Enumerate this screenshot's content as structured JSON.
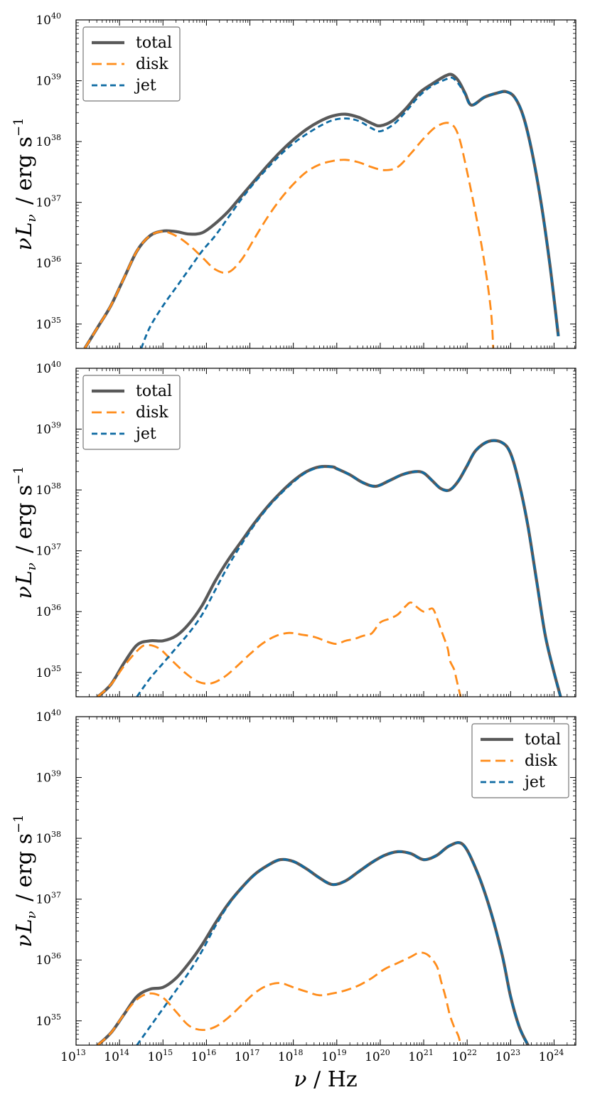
{
  "colors": {
    "total": "#595959",
    "disk": "#ff8c1a",
    "jet": "#0f6ba3"
  },
  "x_label": {
    "sym": "ν",
    "unit": "Hz"
  },
  "y_label": {
    "prefix": "ν",
    "sym": "L",
    "sub": "ν",
    "unit": "erg s",
    "exp": "−1"
  },
  "legend_labels": [
    "total",
    "disk",
    "jet"
  ],
  "chart_data": [
    {
      "type": "line",
      "xscale": "log",
      "yscale": "log",
      "xlim": [
        13,
        24.5
      ],
      "ylim": [
        34.6,
        40
      ],
      "x_ticks": [
        13,
        14,
        15,
        16,
        17,
        18,
        19,
        20,
        21,
        22,
        23,
        24
      ],
      "y_ticks": [
        35,
        36,
        37,
        38,
        39,
        40
      ],
      "legend_position": "top-left",
      "series": [
        {
          "name": "total",
          "style": "solid",
          "x": [
            13.2,
            13.5,
            13.8,
            14.1,
            14.4,
            14.7,
            15.0,
            15.3,
            15.6,
            15.9,
            16.2,
            16.5,
            16.8,
            17.1,
            17.4,
            17.7,
            18.0,
            18.3,
            18.6,
            18.9,
            19.2,
            19.5,
            19.8,
            20.0,
            20.3,
            20.6,
            20.9,
            21.2,
            21.5,
            21.65,
            21.8,
            21.95,
            22.1,
            22.4,
            22.7,
            22.9,
            23.1,
            23.3,
            23.5,
            23.7,
            23.9,
            24.1
          ],
          "y": [
            34.6,
            34.95,
            35.3,
            35.75,
            36.2,
            36.45,
            36.53,
            36.52,
            36.48,
            36.5,
            36.65,
            36.85,
            37.1,
            37.35,
            37.6,
            37.83,
            38.03,
            38.2,
            38.33,
            38.42,
            38.45,
            38.4,
            38.3,
            38.26,
            38.35,
            38.55,
            38.8,
            38.95,
            39.08,
            39.1,
            39.0,
            38.8,
            38.6,
            38.73,
            38.8,
            38.82,
            38.72,
            38.4,
            37.8,
            37.0,
            36.0,
            34.8
          ]
        },
        {
          "name": "disk",
          "style": "dashed",
          "x": [
            13.2,
            13.5,
            13.8,
            14.1,
            14.4,
            14.7,
            15.0,
            15.3,
            15.6,
            15.9,
            16.2,
            16.5,
            16.8,
            17.1,
            17.4,
            17.7,
            18.0,
            18.3,
            18.6,
            18.9,
            19.2,
            19.5,
            19.8,
            20.1,
            20.4,
            20.7,
            21.0,
            21.3,
            21.6,
            21.8,
            22.0,
            22.2,
            22.4,
            22.55,
            22.6
          ],
          "y": [
            34.6,
            34.95,
            35.3,
            35.75,
            36.2,
            36.45,
            36.52,
            36.45,
            36.3,
            36.1,
            35.9,
            35.85,
            36.05,
            36.4,
            36.75,
            37.05,
            37.3,
            37.5,
            37.62,
            37.68,
            37.7,
            37.66,
            37.58,
            37.53,
            37.58,
            37.8,
            38.05,
            38.25,
            38.3,
            38.1,
            37.5,
            36.8,
            36.0,
            35.2,
            34.6
          ]
        },
        {
          "name": "jet",
          "style": "dashed",
          "x": [
            14.5,
            14.7,
            15.0,
            15.3,
            15.6,
            15.9,
            16.2,
            16.5,
            16.8,
            17.1,
            17.4,
            17.7,
            18.0,
            18.3,
            18.6,
            18.9,
            19.2,
            19.5,
            19.8,
            20.0,
            20.3,
            20.6,
            20.9,
            21.2,
            21.5,
            21.65,
            21.8,
            21.95,
            22.1,
            22.4,
            22.7,
            22.9,
            23.1,
            23.3,
            23.5,
            23.7,
            23.9,
            24.1
          ],
          "y": [
            34.6,
            34.95,
            35.3,
            35.6,
            35.9,
            36.2,
            36.45,
            36.75,
            37.05,
            37.32,
            37.56,
            37.78,
            37.97,
            38.12,
            38.25,
            38.35,
            38.38,
            38.34,
            38.22,
            38.17,
            38.28,
            38.5,
            38.75,
            38.92,
            39.02,
            39.05,
            38.95,
            38.78,
            38.6,
            38.73,
            38.8,
            38.82,
            38.72,
            38.4,
            37.8,
            37.0,
            36.0,
            34.8
          ]
        }
      ]
    },
    {
      "type": "line",
      "xscale": "log",
      "yscale": "log",
      "xlim": [
        13,
        24.5
      ],
      "ylim": [
        34.6,
        40
      ],
      "x_ticks": [
        13,
        14,
        15,
        16,
        17,
        18,
        19,
        20,
        21,
        22,
        23,
        24
      ],
      "y_ticks": [
        35,
        36,
        37,
        38,
        39,
        40
      ],
      "legend_position": "top-left",
      "series": [
        {
          "name": "total",
          "style": "solid",
          "x": [
            13.5,
            13.8,
            14.1,
            14.4,
            14.7,
            15.0,
            15.3,
            15.6,
            15.9,
            16.2,
            16.5,
            16.8,
            17.1,
            17.4,
            17.7,
            18.0,
            18.3,
            18.6,
            18.9,
            19.0,
            19.3,
            19.6,
            19.9,
            20.2,
            20.5,
            20.8,
            21.0,
            21.2,
            21.4,
            21.6,
            21.8,
            22.0,
            22.2,
            22.5,
            22.8,
            23.0,
            23.2,
            23.4,
            23.6,
            23.8,
            24.0,
            24.15
          ],
          "y": [
            34.6,
            34.8,
            35.15,
            35.45,
            35.52,
            35.52,
            35.6,
            35.8,
            36.1,
            36.5,
            36.85,
            37.15,
            37.45,
            37.72,
            37.95,
            38.15,
            38.3,
            38.38,
            38.38,
            38.35,
            38.25,
            38.12,
            38.06,
            38.15,
            38.25,
            38.3,
            38.28,
            38.15,
            38.02,
            38.0,
            38.15,
            38.4,
            38.65,
            38.8,
            38.78,
            38.6,
            38.1,
            37.4,
            36.5,
            35.6,
            35.0,
            34.6
          ]
        },
        {
          "name": "disk",
          "style": "dashed",
          "x": [
            13.5,
            13.8,
            14.1,
            14.4,
            14.6,
            14.9,
            15.2,
            15.5,
            15.8,
            16.1,
            16.4,
            16.7,
            17.0,
            17.3,
            17.6,
            17.9,
            18.2,
            18.5,
            18.8,
            19.0,
            19.2,
            19.4,
            19.6,
            19.8,
            20.0,
            20.2,
            20.4,
            20.6,
            20.7,
            20.8,
            21.0,
            21.2,
            21.3,
            21.4,
            21.55,
            21.6,
            21.7,
            21.75,
            21.8,
            21.85
          ],
          "y": [
            34.6,
            34.8,
            35.1,
            35.35,
            35.45,
            35.4,
            35.2,
            35.0,
            34.85,
            34.82,
            34.92,
            35.1,
            35.3,
            35.48,
            35.6,
            35.65,
            35.62,
            35.58,
            35.5,
            35.47,
            35.52,
            35.55,
            35.6,
            35.64,
            35.82,
            35.88,
            35.95,
            36.1,
            36.15,
            36.1,
            36.0,
            36.05,
            35.9,
            35.7,
            35.4,
            35.2,
            35.05,
            34.9,
            34.75,
            34.6
          ]
        },
        {
          "name": "jet",
          "style": "dashed",
          "x": [
            14.4,
            14.7,
            15.0,
            15.3,
            15.6,
            15.9,
            16.2,
            16.5,
            16.8,
            17.1,
            17.4,
            17.7,
            18.0,
            18.3,
            18.6,
            18.9,
            19.0,
            19.3,
            19.6,
            19.9,
            20.2,
            20.5,
            20.8,
            21.0,
            21.2,
            21.4,
            21.6,
            21.8,
            22.0,
            22.2,
            22.5,
            22.8,
            23.0,
            23.2,
            23.4,
            23.6,
            23.8,
            24.0,
            24.15
          ],
          "y": [
            34.6,
            34.9,
            35.15,
            35.4,
            35.65,
            35.95,
            36.35,
            36.75,
            37.1,
            37.42,
            37.7,
            37.93,
            38.13,
            38.29,
            38.37,
            38.38,
            38.35,
            38.25,
            38.12,
            38.06,
            38.15,
            38.25,
            38.3,
            38.28,
            38.15,
            38.02,
            38.0,
            38.15,
            38.4,
            38.65,
            38.8,
            38.78,
            38.6,
            38.1,
            37.4,
            36.5,
            35.6,
            35.0,
            34.6
          ]
        }
      ]
    },
    {
      "type": "line",
      "xscale": "log",
      "yscale": "log",
      "xlim": [
        13,
        24.5
      ],
      "ylim": [
        34.6,
        40
      ],
      "x_ticks": [
        13,
        14,
        15,
        16,
        17,
        18,
        19,
        20,
        21,
        22,
        23,
        24
      ],
      "y_ticks": [
        35,
        36,
        37,
        38,
        39,
        40
      ],
      "legend_position": "top-right",
      "series": [
        {
          "name": "total",
          "style": "solid",
          "x": [
            13.5,
            13.8,
            14.1,
            14.4,
            14.7,
            15.0,
            15.3,
            15.6,
            15.9,
            16.2,
            16.5,
            16.8,
            17.1,
            17.4,
            17.7,
            18.0,
            18.3,
            18.6,
            18.9,
            19.2,
            19.5,
            19.8,
            20.1,
            20.4,
            20.7,
            21.0,
            21.3,
            21.6,
            21.9,
            22.2,
            22.5,
            22.8,
            23.0,
            23.2,
            23.4
          ],
          "y": [
            34.6,
            34.8,
            35.1,
            35.4,
            35.52,
            35.55,
            35.7,
            35.95,
            36.25,
            36.6,
            36.92,
            37.18,
            37.4,
            37.55,
            37.65,
            37.62,
            37.5,
            37.35,
            37.24,
            37.3,
            37.45,
            37.6,
            37.72,
            37.78,
            37.75,
            37.65,
            37.72,
            37.88,
            37.9,
            37.5,
            36.9,
            36.1,
            35.4,
            34.9,
            34.6
          ]
        },
        {
          "name": "disk",
          "style": "dashed",
          "x": [
            13.5,
            13.8,
            14.1,
            14.4,
            14.7,
            15.0,
            15.3,
            15.6,
            15.9,
            16.2,
            16.5,
            16.8,
            17.1,
            17.4,
            17.7,
            18.0,
            18.3,
            18.6,
            18.9,
            19.2,
            19.5,
            19.8,
            20.1,
            20.4,
            20.7,
            20.9,
            21.1,
            21.3,
            21.4,
            21.5,
            21.6,
            21.7,
            21.8,
            21.85
          ],
          "y": [
            34.6,
            34.8,
            35.1,
            35.35,
            35.45,
            35.38,
            35.15,
            34.92,
            34.85,
            34.9,
            35.05,
            35.25,
            35.45,
            35.58,
            35.62,
            35.55,
            35.48,
            35.42,
            35.45,
            35.5,
            35.58,
            35.7,
            35.85,
            35.95,
            36.05,
            36.12,
            36.08,
            35.9,
            35.65,
            35.4,
            35.1,
            34.9,
            34.75,
            34.6
          ]
        },
        {
          "name": "jet",
          "style": "dashed",
          "x": [
            14.4,
            14.7,
            15.0,
            15.3,
            15.6,
            15.9,
            16.2,
            16.5,
            16.8,
            17.1,
            17.4,
            17.7,
            18.0,
            18.3,
            18.6,
            18.9,
            19.2,
            19.5,
            19.8,
            20.1,
            20.4,
            20.7,
            21.0,
            21.3,
            21.6,
            21.9,
            22.2,
            22.5,
            22.8,
            23.0,
            23.2,
            23.4
          ],
          "y": [
            34.6,
            34.9,
            35.2,
            35.5,
            35.8,
            36.15,
            36.55,
            36.9,
            37.17,
            37.39,
            37.55,
            37.65,
            37.62,
            37.5,
            37.35,
            37.24,
            37.3,
            37.45,
            37.6,
            37.72,
            37.78,
            37.75,
            37.65,
            37.72,
            37.88,
            37.9,
            37.5,
            36.9,
            36.1,
            35.4,
            34.9,
            34.6
          ]
        }
      ]
    }
  ]
}
